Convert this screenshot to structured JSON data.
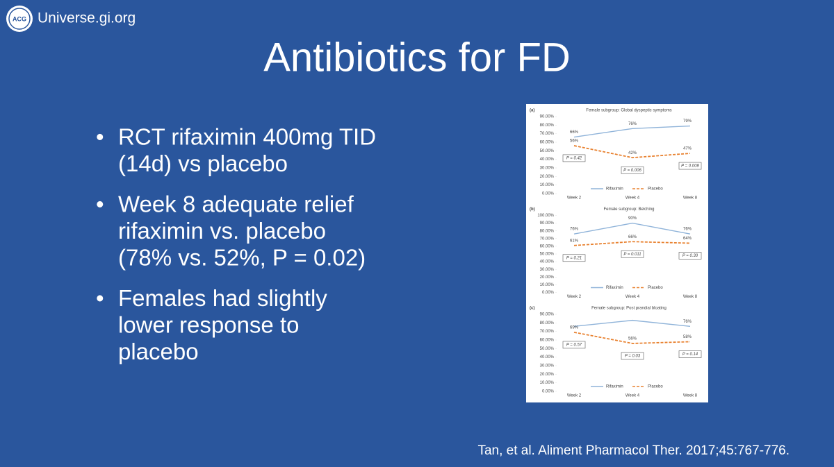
{
  "slide": {
    "logo": "ACG",
    "site": "Universe.gi.org",
    "title": "Antibiotics for FD",
    "bullets": [
      [
        "RCT rifaximin 400mg TID",
        "(14d) vs placebo"
      ],
      [
        "Week 8 adequate relief",
        "rifaximin vs. placebo",
        "(78% vs. 52%, P = 0.02)"
      ],
      [
        "Females had slightly",
        "lower response to",
        "placebo"
      ]
    ],
    "citation": "Tan, et al. Aliment Pharmacol Ther. 2017;45:767-776."
  },
  "chart_data": [
    {
      "type": "line",
      "panel": "(a)",
      "title": "Female subgroup: Global dyspeptic symptoms",
      "categories": [
        "Week 2",
        "Week 4",
        "Week 8"
      ],
      "series": [
        {
          "name": "Rifaximin",
          "color": "#8fb3d9",
          "dashed": false,
          "values": [
            66,
            76,
            79
          ],
          "value_labels": [
            "66%",
            "76%",
            "79%"
          ]
        },
        {
          "name": "Placebo",
          "color": "#e8812f",
          "dashed": true,
          "values": [
            56,
            42,
            47
          ],
          "value_labels": [
            "56%",
            "42%",
            "47%"
          ]
        }
      ],
      "annotations": [
        "P = 0.42",
        "P = 0.006",
        "P = 0.008"
      ],
      "ylim": [
        0,
        90
      ],
      "yticks": [
        {
          "value": 0,
          "label": "0.00%"
        },
        {
          "value": 10,
          "label": "10.00%"
        },
        {
          "value": 20,
          "label": "20.00%"
        },
        {
          "value": 30,
          "label": "30.00%"
        },
        {
          "value": 40,
          "label": "40.00%"
        },
        {
          "value": 50,
          "label": "50.00%"
        },
        {
          "value": 60,
          "label": "60.00%"
        },
        {
          "value": 70,
          "label": "70.00%"
        },
        {
          "value": 80,
          "label": "80.00%"
        },
        {
          "value": 90,
          "label": "90.00%"
        }
      ]
    },
    {
      "type": "line",
      "panel": "(b)",
      "title": "Female subgroup: Belching",
      "categories": [
        "Week 2",
        "Week 4",
        "Week 8"
      ],
      "series": [
        {
          "name": "Rifaximin",
          "color": "#8fb3d9",
          "dashed": false,
          "values": [
            76,
            90,
            76
          ],
          "value_labels": [
            "76%",
            "90%",
            "76%"
          ]
        },
        {
          "name": "Placebo",
          "color": "#e8812f",
          "dashed": true,
          "values": [
            61,
            66,
            64
          ],
          "value_labels": [
            "61%",
            "66%",
            "64%"
          ]
        }
      ],
      "annotations": [
        "P = 0.21",
        "P = 0.011",
        "P = 0.30"
      ],
      "ylim": [
        0,
        100
      ],
      "yticks": [
        {
          "value": 0,
          "label": "0.00%"
        },
        {
          "value": 10,
          "label": "10.00%"
        },
        {
          "value": 20,
          "label": "20.00%"
        },
        {
          "value": 30,
          "label": "30.00%"
        },
        {
          "value": 40,
          "label": "40.00%"
        },
        {
          "value": 50,
          "label": "50.00%"
        },
        {
          "value": 60,
          "label": "60.00%"
        },
        {
          "value": 70,
          "label": "70.00%"
        },
        {
          "value": 80,
          "label": "80.00%"
        },
        {
          "value": 90,
          "label": "90.00%"
        },
        {
          "value": 100,
          "label": "100.00%"
        }
      ]
    },
    {
      "type": "line",
      "panel": "(c)",
      "title": "Female subgroup: Post prandial bloating",
      "categories": [
        "Week 2",
        "Week 4",
        "Week 8"
      ],
      "series": [
        {
          "name": "Rifaximin",
          "color": "#8fb3d9",
          "dashed": false,
          "values": [
            76,
            83,
            76
          ],
          "value_labels": [
            null,
            null,
            "76%"
          ]
        },
        {
          "name": "Placebo",
          "color": "#e8812f",
          "dashed": true,
          "values": [
            69,
            56,
            58
          ],
          "value_labels": [
            "69%",
            "56%",
            "58%"
          ]
        }
      ],
      "annotations": [
        "P = 0.57",
        "P = 0.03",
        "P = 0.14"
      ],
      "ylim": [
        0,
        90
      ],
      "yticks": [
        {
          "value": 0,
          "label": "0.00%"
        },
        {
          "value": 10,
          "label": "10.00%"
        },
        {
          "value": 20,
          "label": "20.00%"
        },
        {
          "value": 30,
          "label": "30.00%"
        },
        {
          "value": 40,
          "label": "40.00%"
        },
        {
          "value": 50,
          "label": "50.00%"
        },
        {
          "value": 60,
          "label": "60.00%"
        },
        {
          "value": 70,
          "label": "70.00%"
        },
        {
          "value": 80,
          "label": "80.00%"
        },
        {
          "value": 90,
          "label": "90.00%"
        }
      ]
    }
  ]
}
